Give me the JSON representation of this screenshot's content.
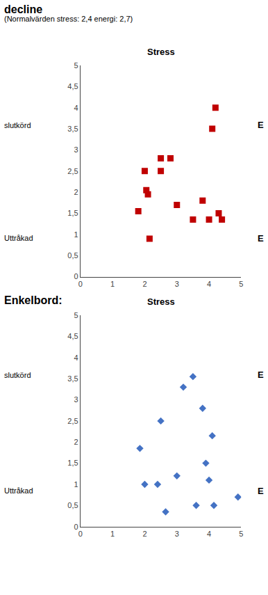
{
  "chart_data": [
    {
      "type": "scatter",
      "title": "decline",
      "subtitle": "(Normalvärden stress: 2,4 energi: 2,7)",
      "annotations": [
        "Stress",
        "slutkörd",
        "Uttråkad",
        "E",
        "E"
      ],
      "x": [
        2.0,
        2.05,
        2.5,
        2.5,
        2.8,
        3.0,
        3.5,
        3.8,
        4.0,
        4.1,
        4.2,
        4.3,
        4.4,
        1.8,
        2.1,
        2.15
      ],
      "values": [
        2.5,
        2.05,
        2.5,
        2.8,
        2.8,
        1.7,
        1.35,
        1.8,
        1.35,
        3.5,
        4.0,
        1.5,
        1.35,
        1.55,
        1.95,
        0.9
      ],
      "color": "#c00000",
      "marker": "square",
      "xlim": [
        0,
        5
      ],
      "ylim": [
        0,
        5
      ],
      "xticks": [
        0,
        1,
        2,
        3,
        4,
        5
      ],
      "yticks": [
        0,
        {
          "value": 0.5,
          "label": "0,5"
        },
        1,
        {
          "value": 1.5,
          "label": "1,5"
        },
        2,
        {
          "value": 2.5,
          "label": "2,5"
        },
        3,
        {
          "value": 3.5,
          "label": "3,5"
        },
        4,
        {
          "value": 4.5,
          "label": "4,5"
        },
        5
      ],
      "grid": false
    },
    {
      "type": "scatter",
      "title": "Enkelbord:",
      "annotations": [
        "Stress",
        "slutkörd",
        "Uttråkad",
        "E",
        "E"
      ],
      "x": [
        1.85,
        2.0,
        2.5,
        3.0,
        3.2,
        3.5,
        3.8,
        3.9,
        4.0,
        4.1,
        4.15,
        4.9,
        2.4,
        2.65,
        3.6
      ],
      "values": [
        1.85,
        1.0,
        2.5,
        1.2,
        3.3,
        3.55,
        2.8,
        1.5,
        1.1,
        2.15,
        0.5,
        0.7,
        1.0,
        0.35,
        0.5
      ],
      "color": "#4472c4",
      "marker": "diamond",
      "xlim": [
        0,
        5
      ],
      "ylim": [
        0,
        5
      ],
      "xticks": [
        0,
        1,
        2,
        3,
        4,
        5
      ],
      "yticks": [
        0,
        {
          "value": 0.5,
          "label": "0,5"
        },
        1,
        {
          "value": 1.5,
          "label": "1,5"
        },
        2,
        {
          "value": 2.5,
          "label": "2,5"
        },
        3,
        {
          "value": 3.5,
          "label": "3,5"
        },
        4,
        {
          "value": 4.5,
          "label": "4,5"
        },
        5
      ],
      "grid": false
    }
  ]
}
